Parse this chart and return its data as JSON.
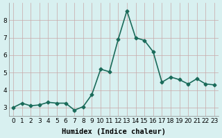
{
  "x": [
    0,
    1,
    2,
    3,
    4,
    5,
    6,
    7,
    8,
    9,
    10,
    11,
    12,
    13,
    14,
    15,
    16,
    17,
    18,
    19,
    20,
    21,
    22,
    23
  ],
  "y": [
    3.0,
    3.25,
    3.1,
    3.15,
    3.3,
    3.25,
    3.25,
    2.85,
    3.05,
    3.75,
    5.2,
    5.05,
    6.9,
    8.55,
    7.0,
    6.85,
    6.2,
    4.45,
    4.75,
    4.6,
    4.35,
    4.65,
    4.35,
    4.3
  ],
  "line_color": "#1a6b5a",
  "marker": "D",
  "marker_size": 2.5,
  "bg_color": "#d8f0f0",
  "grid_color_major": "#c8a8a8",
  "grid_color_minor": "#ddc8c8",
  "xlabel": "Humidex (Indice chaleur)",
  "ylim": [
    2.5,
    9.0
  ],
  "xlim": [
    -0.5,
    23.5
  ],
  "yticks": [
    3,
    4,
    5,
    6,
    7,
    8
  ],
  "xticks": [
    0,
    1,
    2,
    3,
    4,
    5,
    6,
    7,
    8,
    9,
    10,
    11,
    12,
    13,
    14,
    15,
    16,
    17,
    18,
    19,
    20,
    21,
    22,
    23
  ],
  "xlabel_fontsize": 7.5,
  "tick_fontsize": 6.5,
  "linewidth": 1.2
}
